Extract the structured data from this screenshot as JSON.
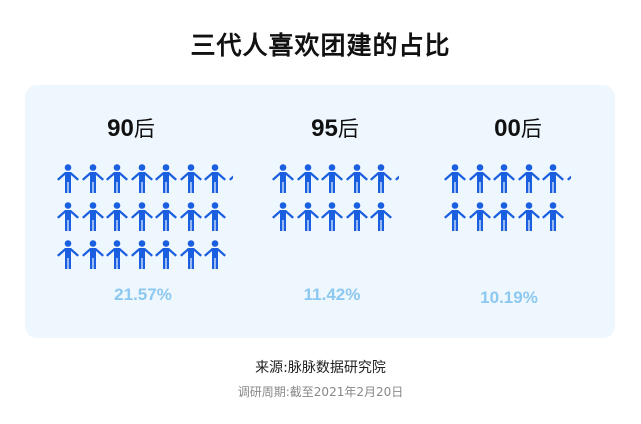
{
  "title": "三代人喜欢团建的占比",
  "chart_data": {
    "type": "pictogram",
    "title": "三代人喜欢团建的占比",
    "categories": [
      {
        "num": "90",
        "suffix": "后",
        "value": 21.57,
        "label": "21.57%"
      },
      {
        "num": "95",
        "suffix": "后",
        "value": 11.42,
        "label": "11.42%"
      },
      {
        "num": "00",
        "suffix": "后",
        "value": 10.19,
        "label": "10.19%"
      }
    ],
    "icon": "person-icon",
    "icon_color": "#1a5fe0",
    "percent_color": "#8cc8f0",
    "panel_color": "#eef6fe"
  },
  "footer": {
    "source": "来源:脉脉数据研究院",
    "period": "调研周期:截至2021年2月20日"
  }
}
